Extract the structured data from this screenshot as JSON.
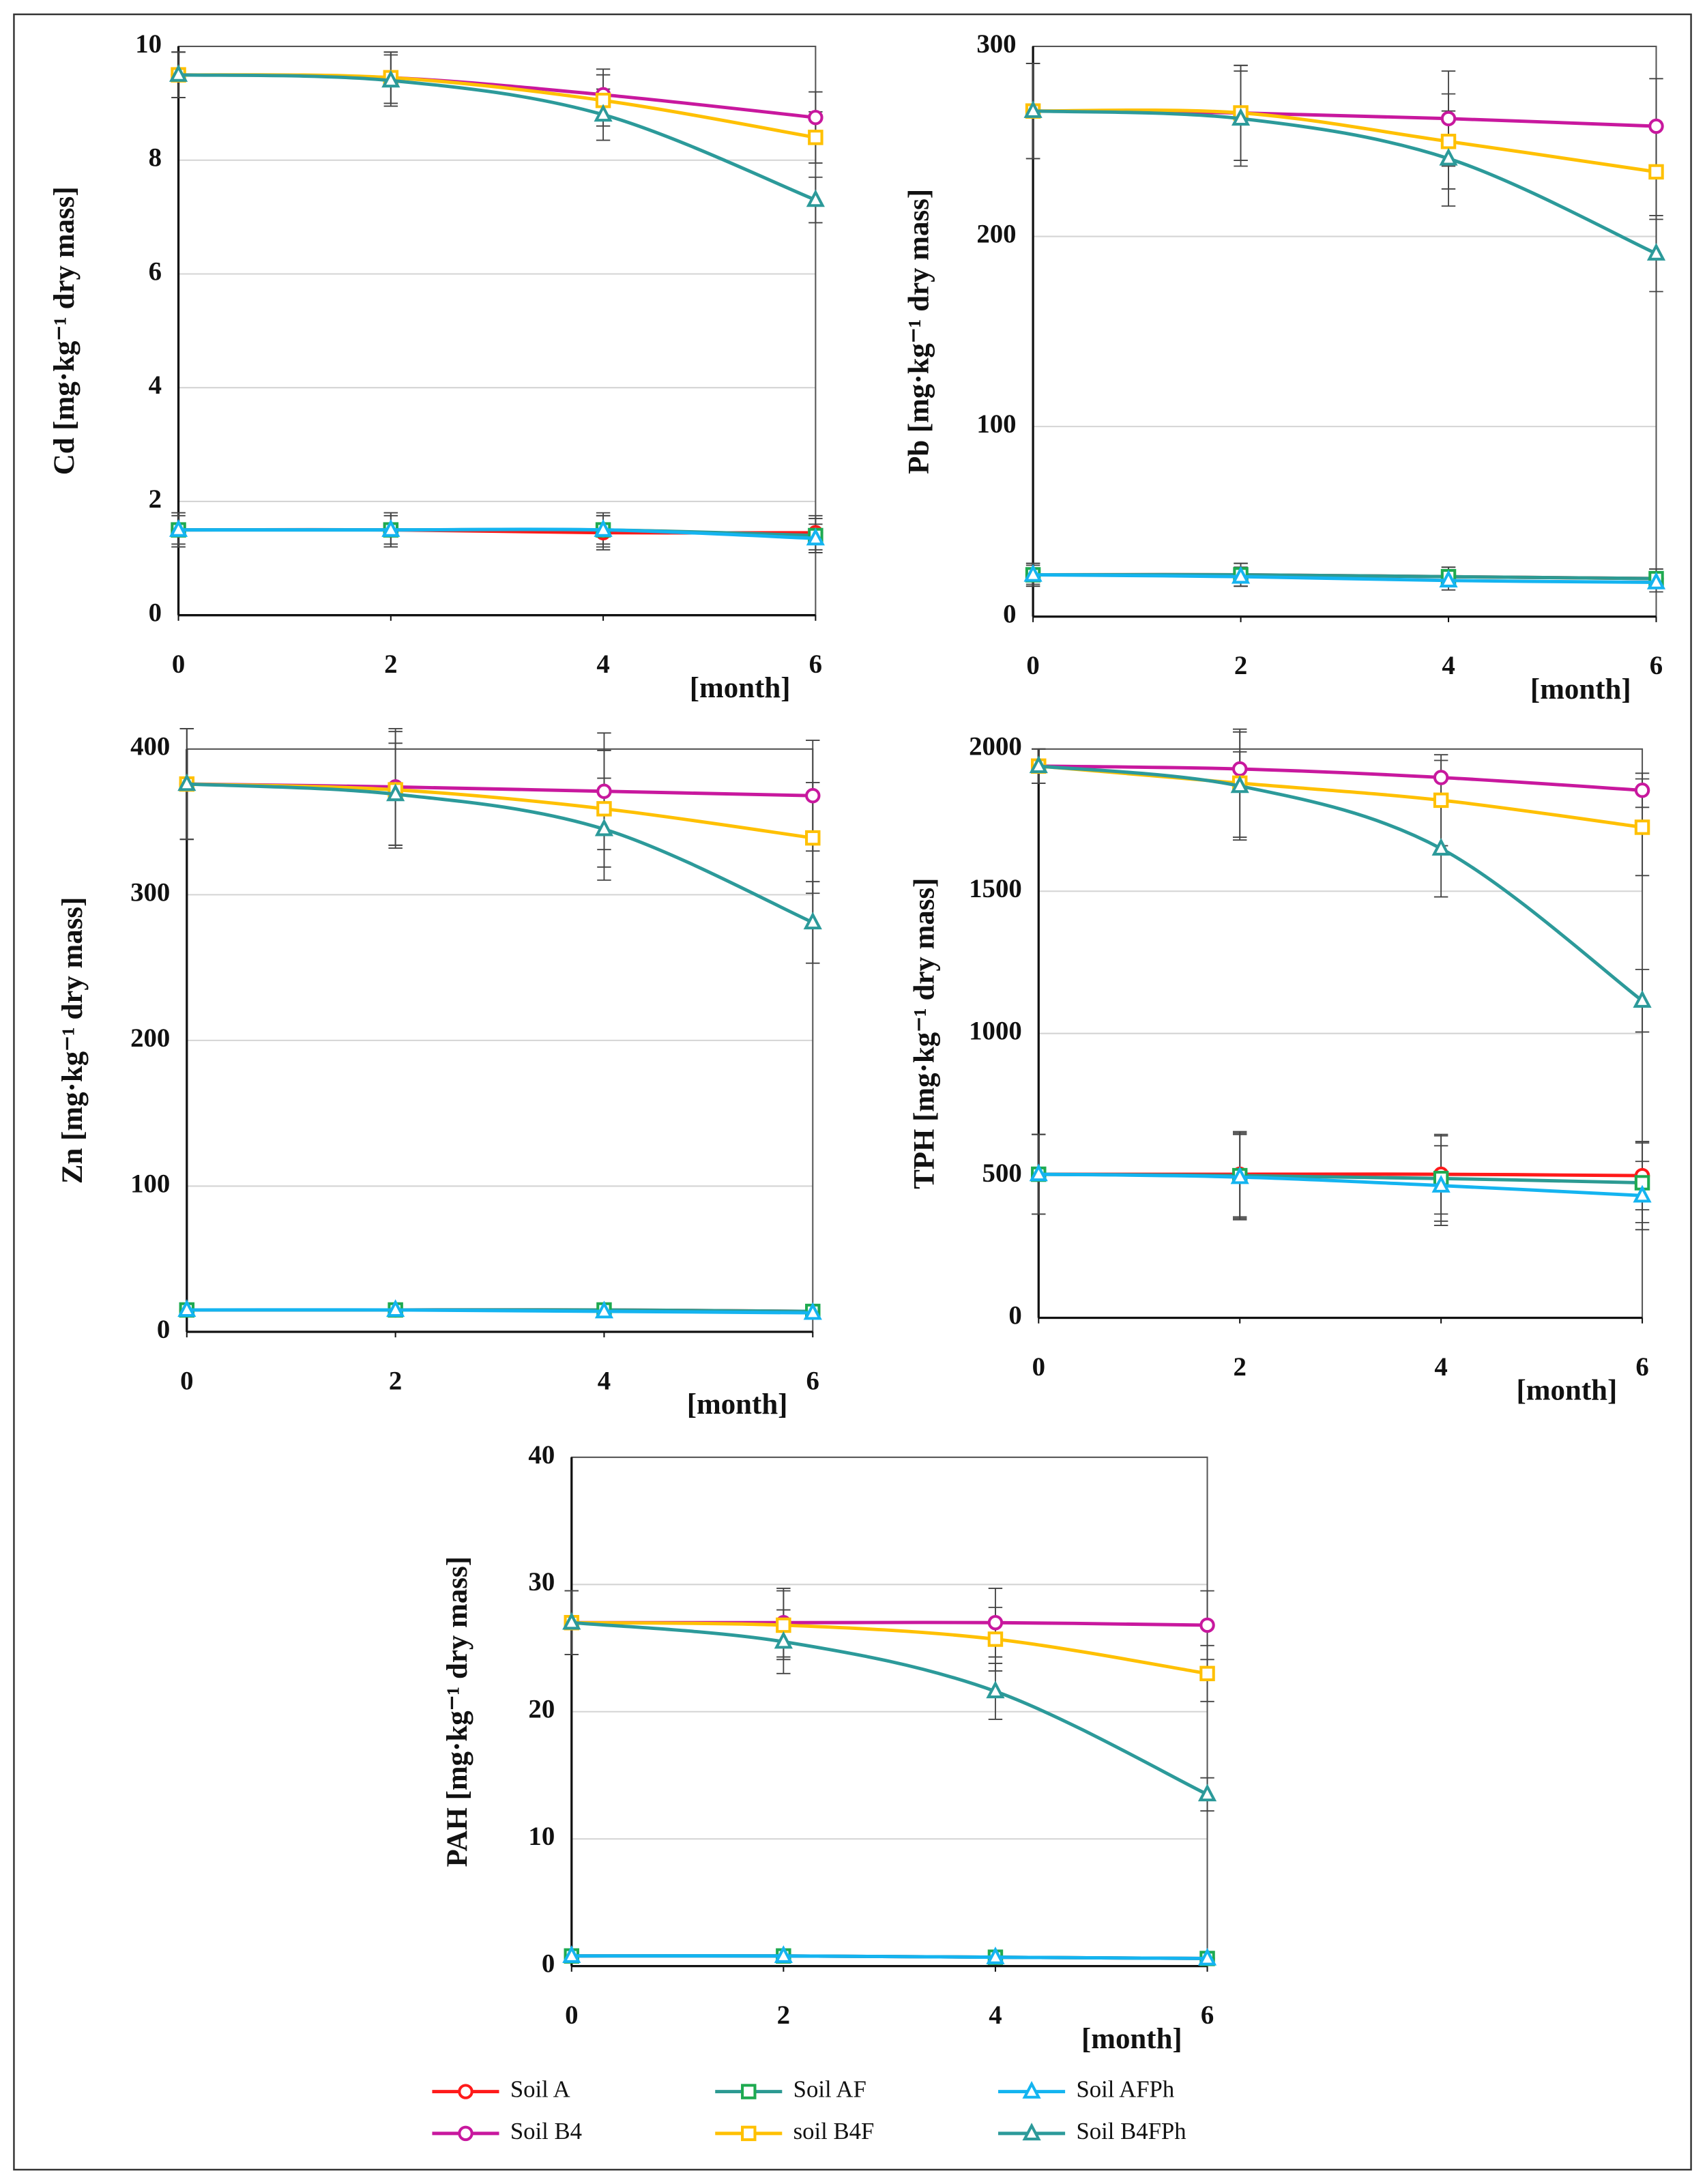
{
  "chart_data": [
    {
      "type": "line",
      "y_label": "Cd [mg·kg⁻¹ dry mass]",
      "x_label": "[month]",
      "x": [
        0,
        2,
        4,
        6
      ],
      "xlim": [
        0,
        6
      ],
      "xticks": [
        0,
        2,
        4,
        6
      ],
      "ylim": [
        0,
        10
      ],
      "yticks": [
        0,
        2,
        4,
        6,
        8,
        10
      ],
      "grid": true,
      "series": [
        {
          "values": [
            1.5,
            1.5,
            1.45,
            1.45
          ],
          "errors": [
            0.3,
            0.3,
            0.3,
            0.3
          ]
        },
        {
          "values": [
            1.5,
            1.5,
            1.5,
            1.4
          ],
          "errors": [
            0.3,
            0.3,
            0.3,
            0.3
          ]
        },
        {
          "values": [
            1.5,
            1.5,
            1.5,
            1.35
          ],
          "errors": [
            0.25,
            0.25,
            0.25,
            0.25
          ]
        },
        {
          "values": [
            9.5,
            9.45,
            9.15,
            8.75
          ],
          "errors": [
            0.4,
            0.45,
            0.45,
            0.45
          ]
        },
        {
          "values": [
            9.5,
            9.45,
            9.05,
            8.4
          ],
          "errors": [
            0.4,
            0.45,
            0.45,
            0.45
          ]
        },
        {
          "values": [
            9.5,
            9.4,
            8.8,
            7.3
          ],
          "errors": [
            0.4,
            0.45,
            0.45,
            0.4
          ]
        }
      ]
    },
    {
      "type": "line",
      "y_label": "Pb [mg·kg⁻¹ dry mass]",
      "x_label": "[month]",
      "x": [
        0,
        2,
        4,
        6
      ],
      "xlim": [
        0,
        6
      ],
      "xticks": [
        0,
        2,
        4,
        6
      ],
      "ylim": [
        0,
        300
      ],
      "yticks": [
        0,
        100,
        200,
        300
      ],
      "grid": true,
      "series": [
        {
          "values": [
            22,
            22,
            21,
            20
          ],
          "errors": [
            6,
            6,
            5,
            5
          ]
        },
        {
          "values": [
            22,
            22,
            21,
            20
          ],
          "errors": [
            6,
            6,
            5,
            5
          ]
        },
        {
          "values": [
            22,
            21,
            19,
            18
          ],
          "errors": [
            5,
            5,
            5,
            5
          ]
        },
        {
          "values": [
            266,
            265,
            262,
            258
          ],
          "errors": [
            25,
            25,
            25,
            25
          ]
        },
        {
          "values": [
            266,
            265,
            250,
            234
          ],
          "errors": [
            25,
            25,
            25,
            25
          ]
        },
        {
          "values": [
            266,
            262,
            241,
            191
          ],
          "errors": [
            25,
            25,
            25,
            20
          ]
        }
      ]
    },
    {
      "type": "line",
      "y_label": "Zn [mg·kg⁻¹ dry mass]",
      "x_label": "[month]",
      "x": [
        0,
        2,
        4,
        6
      ],
      "xlim": [
        0,
        6
      ],
      "xticks": [
        0,
        2,
        4,
        6
      ],
      "ylim": [
        0,
        400
      ],
      "yticks": [
        0,
        100,
        200,
        300,
        400
      ],
      "grid": true,
      "series": [
        {
          "values": [
            15,
            15,
            15,
            14
          ],
          "errors": [
            3,
            3,
            3,
            3
          ]
        },
        {
          "values": [
            15,
            15,
            15,
            14
          ],
          "errors": [
            3,
            3,
            3,
            3
          ]
        },
        {
          "values": [
            15,
            15,
            14,
            13
          ],
          "errors": [
            3,
            3,
            3,
            3
          ]
        },
        {
          "values": [
            376,
            374,
            371,
            368
          ],
          "errors": [
            38,
            40,
            40,
            38
          ]
        },
        {
          "values": [
            376,
            372,
            359,
            339
          ],
          "errors": [
            38,
            40,
            40,
            38
          ]
        },
        {
          "values": [
            376,
            369,
            345,
            281
          ],
          "errors": [
            38,
            35,
            35,
            28
          ]
        }
      ]
    },
    {
      "type": "line",
      "y_label": "TPH [mg·kg⁻¹ dry mass]",
      "x_label": "[month]",
      "x": [
        0,
        2,
        4,
        6
      ],
      "xlim": [
        0,
        6
      ],
      "xticks": [
        0,
        2,
        4,
        6
      ],
      "ylim": [
        0,
        2000
      ],
      "yticks": [
        0,
        500,
        1000,
        1500,
        2000
      ],
      "grid": true,
      "series": [
        {
          "values": [
            505,
            505,
            505,
            500
          ],
          "errors": [
            140,
            150,
            140,
            120
          ]
        },
        {
          "values": [
            505,
            500,
            490,
            475
          ],
          "errors": [
            140,
            150,
            150,
            140
          ]
        },
        {
          "values": [
            505,
            495,
            465,
            430
          ],
          "errors": [
            140,
            150,
            140,
            120
          ]
        },
        {
          "values": [
            1940,
            1930,
            1900,
            1855
          ],
          "errors": [
            60,
            60,
            60,
            60
          ]
        },
        {
          "values": [
            1940,
            1880,
            1820,
            1725
          ],
          "errors": [
            60,
            190,
            160,
            170
          ]
        },
        {
          "values": [
            1940,
            1870,
            1650,
            1115
          ],
          "errors": [
            60,
            190,
            170,
            110
          ]
        }
      ]
    },
    {
      "type": "line",
      "y_label": "PAH [mg·kg⁻¹ dry mass]",
      "x_label": "[month]",
      "x": [
        0,
        2,
        4,
        6
      ],
      "xlim": [
        0,
        6
      ],
      "xticks": [
        0,
        2,
        4,
        6
      ],
      "ylim": [
        0,
        40
      ],
      "yticks": [
        0,
        10,
        20,
        30,
        40
      ],
      "grid": true,
      "series": [
        {
          "values": [
            0.8,
            0.8,
            0.7,
            0.6
          ],
          "errors": [
            0.2,
            0.2,
            0.2,
            0.2
          ]
        },
        {
          "values": [
            0.8,
            0.8,
            0.7,
            0.6
          ],
          "errors": [
            0.2,
            0.2,
            0.2,
            0.2
          ]
        },
        {
          "values": [
            0.8,
            0.8,
            0.7,
            0.6
          ],
          "errors": [
            0.2,
            0.2,
            0.2,
            0.2
          ]
        },
        {
          "values": [
            27,
            27,
            27,
            26.8
          ],
          "errors": [
            2.5,
            2.7,
            2.7,
            2.7
          ]
        },
        {
          "values": [
            27,
            26.8,
            25.7,
            23
          ],
          "errors": [
            2.5,
            2.7,
            2.5,
            2.2
          ]
        },
        {
          "values": [
            27,
            25.5,
            21.6,
            13.5
          ],
          "errors": [
            2.5,
            2.5,
            2.2,
            1.3
          ]
        }
      ]
    }
  ],
  "legend": [
    {
      "name": "Soil A",
      "color": "#ff1a1a",
      "marker": "circle"
    },
    {
      "name": "Soil AF",
      "color": "#2c9a92",
      "marker_color": "#1eaa50",
      "marker": "square"
    },
    {
      "name": "Soil AFPh",
      "color": "#14b4f0",
      "marker": "triangle"
    },
    {
      "name": "Soil B4",
      "color": "#c8189e",
      "marker": "circle"
    },
    {
      "name": "soil B4F",
      "color": "#ffc000",
      "marker": "square"
    },
    {
      "name": "Soil B4FPh",
      "color": "#2c9a9a",
      "marker": "triangle"
    }
  ]
}
